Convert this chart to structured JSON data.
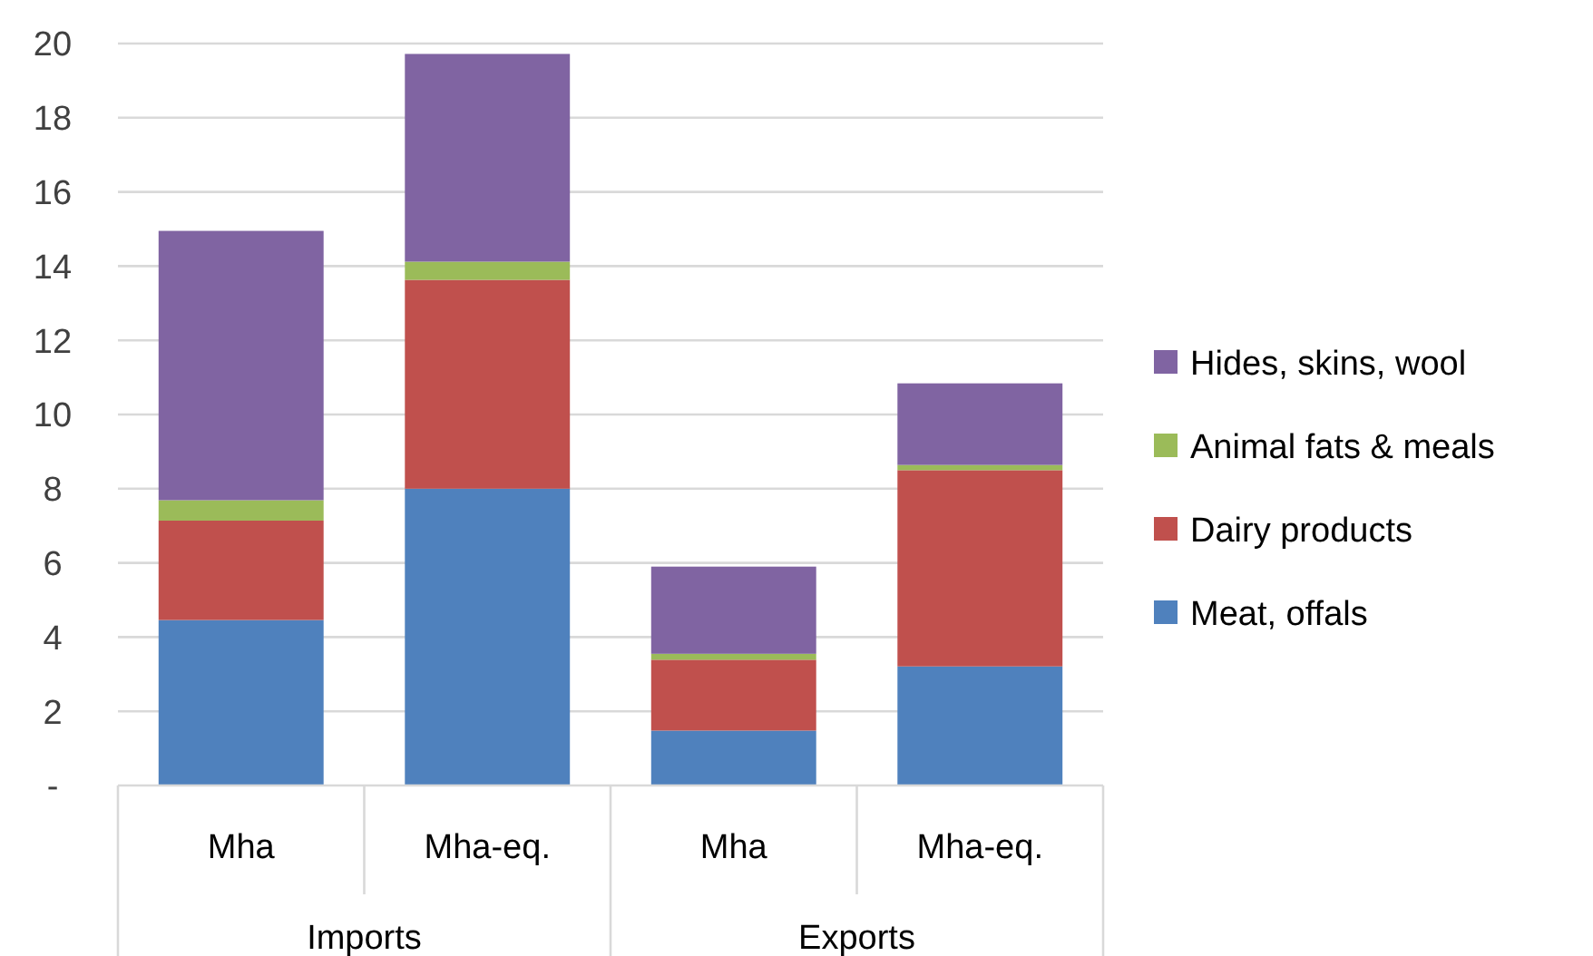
{
  "chart_data": {
    "type": "bar",
    "stacked": true,
    "categories": [
      "Mha",
      "Mha-eq.",
      "Mha",
      "Mha-eq."
    ],
    "series": [
      {
        "name": "Meat, offals",
        "color": "#4f81bd",
        "values": [
          4.46,
          8.0,
          1.48,
          3.21
        ]
      },
      {
        "name": "Dairy products",
        "color": "#c0504d",
        "values": [
          2.68,
          5.63,
          1.91,
          5.29
        ]
      },
      {
        "name": "Animal fats & meals",
        "color": "#9bbb59",
        "values": [
          0.55,
          0.49,
          0.16,
          0.14
        ]
      },
      {
        "name": "Hides, skins, wool",
        "color": "#8064a2",
        "values": [
          7.26,
          5.6,
          2.35,
          2.2
        ]
      }
    ],
    "ylim": [
      0,
      20
    ],
    "yticks": [
      {
        "value": 0,
        "label": "-"
      },
      2,
      4,
      6,
      8,
      10,
      12,
      14,
      16,
      18,
      20
    ],
    "grid": "y",
    "legend": "right",
    "annotations": [
      "Imports",
      "Exports"
    ]
  }
}
